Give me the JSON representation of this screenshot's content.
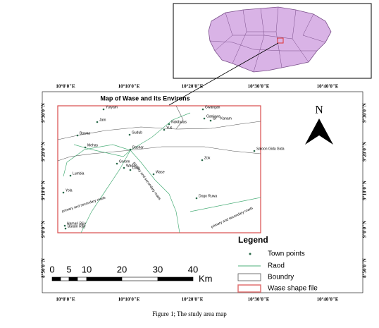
{
  "map": {
    "title": "Map of Wase and its Environs",
    "east_labels": [
      "10°0'0\"E",
      "10°10'0\"E",
      "10°20'0\"E",
      "10°30'0\"E",
      "10°40'0\"E"
    ],
    "north_labels": [
      "9°30'0\"N",
      "9°20'0\"N",
      "9°10'0\"N",
      "9°0'0\"N",
      "8°50'0\"N"
    ],
    "towns": [
      "Yuryam",
      "Gwangan",
      "Ganjuwa",
      "Jam",
      "Nakibulas",
      "Gr",
      "Kanam",
      "Bowas",
      "Gudub",
      "Yus",
      "Mehas",
      "Bashar",
      "Saloon Gida Gida",
      "Zok",
      "Gorom",
      "Wada",
      "Dina",
      "Wase",
      "Lumbia",
      "Yola",
      "Dogo Ruwa",
      "Hamari Rijiy",
      "Baram Rijiy"
    ],
    "road_label": "primary and secondary roads",
    "north_arrow": "N",
    "legend": {
      "title": "Legend",
      "items": [
        "Town points",
        "Raod",
        "Boundry",
        "Wase shape file"
      ]
    },
    "scale": {
      "labels": [
        "0",
        "5",
        "10",
        "20",
        "30",
        "40"
      ],
      "unit": "Km"
    },
    "caption": "Figure 1; The study area map"
  }
}
